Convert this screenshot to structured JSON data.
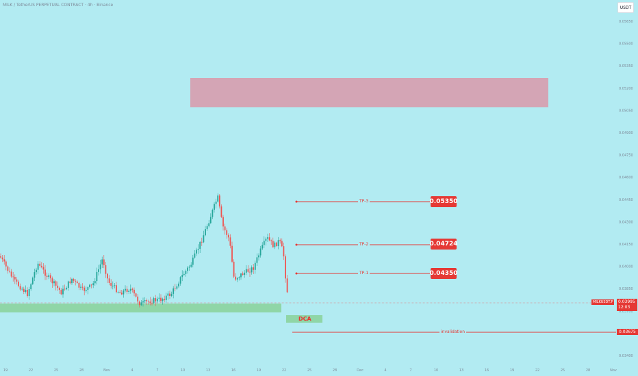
{
  "header": {
    "title": "MILK / TetherUS PERPETUAL CONTRACT · 4h · Binance",
    "currency_button": "USDT"
  },
  "chart_data": {
    "type": "candlestick",
    "price_axis": {
      "min": 0.0337,
      "max": 0.0567,
      "ticks": [
        0.0565,
        0.055,
        0.0535,
        0.052,
        0.0505,
        0.049,
        0.0475,
        0.046,
        0.0445,
        0.043,
        0.0415,
        0.04,
        0.0385,
        0.037,
        0.0355,
        0.034
      ]
    },
    "time_axis": {
      "ticks": [
        "19",
        "22",
        "25",
        "28",
        "Nov",
        "4",
        "7",
        "10",
        "13",
        "16",
        "19",
        "22",
        "25",
        "28",
        "Dec",
        "4",
        "7",
        "10",
        "13",
        "16",
        "19",
        "22",
        "25",
        "28",
        "Nov"
      ]
    },
    "levels": [
      {
        "name": "TP-3",
        "value": 0.0535,
        "label": "0.05350"
      },
      {
        "name": "TP-2",
        "value": 0.04724,
        "label": "0.04724"
      },
      {
        "name": "TP-1",
        "value": 0.0435,
        "label": "0.04350"
      },
      {
        "name": "invalidation",
        "value": 0.03675,
        "label": "0.03675"
      }
    ],
    "current": {
      "symbol": "MILKUSDT.P",
      "price": "0.03995",
      "countdown": "12:03"
    },
    "zones": {
      "target_zone": {
        "from": 0.059,
        "to": 0.063
      },
      "support_zone": {
        "from": 0.0386,
        "to": 0.0396
      },
      "dca_label": "DCA"
    },
    "colors": {
      "up": "#26a69a",
      "down": "#ef5350",
      "background": "#b2ebf2",
      "target_zone": "#d4a5b5",
      "support_zone": "#8fd6a7",
      "accent": "#e53935"
    }
  }
}
